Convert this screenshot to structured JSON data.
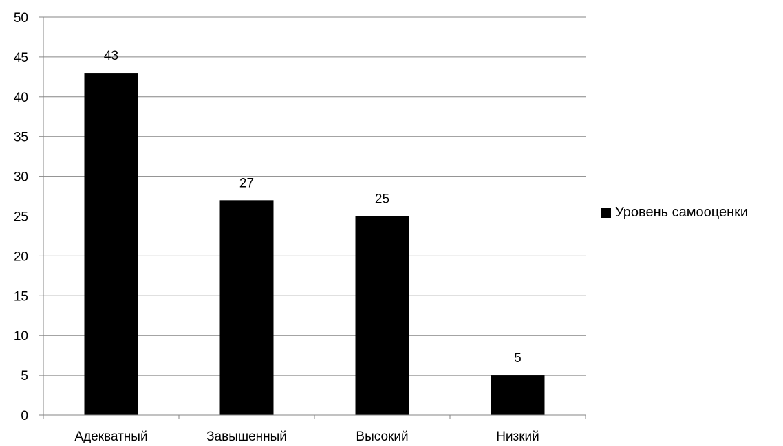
{
  "chart_data": {
    "type": "bar",
    "categories": [
      "Адекватный",
      "Завышенный",
      "Высокий",
      "Низкий"
    ],
    "series": [
      {
        "name": "Уровень самооценки",
        "values": [
          43,
          27,
          25,
          5
        ],
        "color": "#000000"
      }
    ],
    "data_labels": [
      "43",
      "27",
      "25",
      "5"
    ],
    "y_ticks": [
      0,
      5,
      10,
      15,
      20,
      25,
      30,
      35,
      40,
      45,
      50
    ],
    "ylim": [
      0,
      50
    ],
    "grid": true,
    "legend_position": "right",
    "gridline_color": "#868686",
    "axis_color": "#868686"
  }
}
